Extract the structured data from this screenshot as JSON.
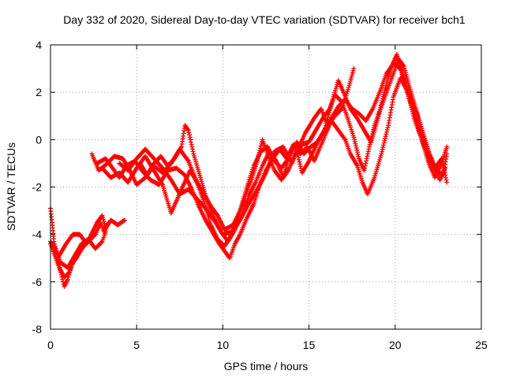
{
  "chart_data": {
    "type": "scatter",
    "title": "Day 332 of 2020, Sidereal Day-to-day VTEC variation (SDTVAR) for receiver bch1",
    "xlabel": "GPS time / hours",
    "ylabel": "SDTVAR / TECUs",
    "xlim": [
      0,
      25
    ],
    "ylim": [
      -8,
      4
    ],
    "xticks": [
      0,
      5,
      10,
      15,
      20,
      25
    ],
    "yticks": [
      -8,
      -6,
      -4,
      -2,
      0,
      2,
      4
    ],
    "grid": true,
    "marker": "+",
    "color": "#ff0000",
    "series": [
      {
        "name": "track-1",
        "points": [
          [
            0.0,
            -2.9
          ],
          [
            0.1,
            -3.5
          ],
          [
            0.2,
            -4.3
          ],
          [
            0.4,
            -5.0
          ],
          [
            0.6,
            -5.6
          ],
          [
            0.8,
            -6.2
          ],
          [
            1.0,
            -5.9
          ],
          [
            1.2,
            -5.3
          ],
          [
            1.5,
            -5.0
          ],
          [
            1.9,
            -4.5
          ],
          [
            2.3,
            -4.1
          ],
          [
            2.7,
            -3.5
          ],
          [
            3.0,
            -3.2
          ],
          [
            3.2,
            -3.7
          ],
          [
            3.5,
            -3.4
          ],
          [
            3.9,
            -3.6
          ],
          [
            4.3,
            -3.4
          ]
        ]
      },
      {
        "name": "track-2",
        "points": [
          [
            0.0,
            -4.4
          ],
          [
            0.2,
            -4.8
          ],
          [
            0.5,
            -5.4
          ],
          [
            0.8,
            -5.8
          ],
          [
            1.1,
            -5.6
          ],
          [
            1.4,
            -5.0
          ],
          [
            1.8,
            -4.6
          ],
          [
            2.2,
            -4.3
          ],
          [
            2.6,
            -4.0
          ],
          [
            2.9,
            -3.5
          ],
          [
            3.1,
            -3.9
          ],
          [
            3.4,
            -3.5
          ]
        ]
      },
      {
        "name": "track-3",
        "points": [
          [
            0.0,
            -4.3
          ],
          [
            0.3,
            -4.6
          ],
          [
            0.6,
            -5.2
          ],
          [
            1.0,
            -5.4
          ],
          [
            1.4,
            -4.9
          ],
          [
            1.8,
            -4.4
          ],
          [
            2.2,
            -4.2
          ],
          [
            2.6,
            -4.6
          ],
          [
            3.0,
            -4.3
          ],
          [
            3.2,
            -3.9
          ]
        ]
      },
      {
        "name": "track-4",
        "points": [
          [
            0.5,
            -4.9
          ],
          [
            0.9,
            -4.4
          ],
          [
            1.3,
            -4.0
          ],
          [
            1.7,
            -4.0
          ],
          [
            2.0,
            -4.3
          ]
        ]
      },
      {
        "name": "track-5",
        "points": [
          [
            2.4,
            -0.6
          ],
          [
            2.8,
            -1.3
          ],
          [
            3.3,
            -1.0
          ],
          [
            3.7,
            -0.7
          ],
          [
            4.2,
            -0.8
          ],
          [
            4.6,
            -1.3
          ],
          [
            5.0,
            -1.9
          ],
          [
            5.5,
            -1.6
          ],
          [
            6.0,
            -1.1
          ],
          [
            6.5,
            -1.4
          ],
          [
            7.0,
            -1.0
          ],
          [
            7.5,
            -0.4
          ],
          [
            8.0,
            -0.9
          ],
          [
            8.5,
            -1.8
          ],
          [
            8.9,
            -2.6
          ],
          [
            9.3,
            -3.6
          ],
          [
            9.7,
            -4.2
          ],
          [
            10.1,
            -4.5
          ],
          [
            10.5,
            -4.0
          ],
          [
            10.9,
            -3.3
          ],
          [
            11.3,
            -2.4
          ],
          [
            11.7,
            -1.6
          ],
          [
            12.0,
            -0.9
          ],
          [
            12.3,
            0.0
          ],
          [
            12.6,
            -0.6
          ],
          [
            13.0,
            -1.3
          ],
          [
            13.4,
            -1.7
          ],
          [
            13.8,
            -1.3
          ],
          [
            14.2,
            -0.6
          ],
          [
            14.6,
            -0.2
          ],
          [
            15.0,
            -0.1
          ],
          [
            15.4,
            0.4
          ],
          [
            15.8,
            0.9
          ],
          [
            16.2,
            1.3
          ],
          [
            16.5,
            1.9
          ],
          [
            16.9,
            1.6
          ],
          [
            17.2,
            1.0
          ],
          [
            17.6,
            0.1
          ],
          [
            17.9,
            -0.8
          ],
          [
            18.2,
            -1.3
          ],
          [
            18.5,
            -0.3
          ],
          [
            18.8,
            0.6
          ],
          [
            19.1,
            1.2
          ],
          [
            19.5,
            2.0
          ],
          [
            19.9,
            2.8
          ],
          [
            20.2,
            3.4
          ],
          [
            20.5,
            3.1
          ],
          [
            20.8,
            2.3
          ],
          [
            21.2,
            1.3
          ],
          [
            21.6,
            0.3
          ],
          [
            22.0,
            -0.6
          ],
          [
            22.4,
            -1.3
          ],
          [
            22.8,
            -1.5
          ],
          [
            23.0,
            -0.6
          ]
        ]
      },
      {
        "name": "track-6",
        "points": [
          [
            2.7,
            -1.0
          ],
          [
            3.2,
            -0.8
          ],
          [
            3.6,
            -1.2
          ],
          [
            4.0,
            -1.6
          ],
          [
            4.4,
            -1.1
          ],
          [
            4.9,
            -0.9
          ],
          [
            5.3,
            -1.3
          ],
          [
            5.8,
            -1.7
          ],
          [
            6.3,
            -1.9
          ],
          [
            6.8,
            -1.3
          ],
          [
            7.3,
            -1.2
          ],
          [
            7.8,
            -1.5
          ],
          [
            8.2,
            -2.1
          ],
          [
            8.6,
            -2.8
          ],
          [
            9.0,
            -3.4
          ],
          [
            9.4,
            -3.9
          ],
          [
            9.8,
            -4.4
          ],
          [
            10.2,
            -4.8
          ],
          [
            10.4,
            -5.0
          ],
          [
            10.7,
            -4.4
          ],
          [
            11.0,
            -4.0
          ],
          [
            11.4,
            -3.3
          ],
          [
            11.8,
            -2.7
          ],
          [
            12.1,
            -2.0
          ],
          [
            12.5,
            -1.3
          ],
          [
            12.9,
            -0.8
          ],
          [
            13.3,
            -0.4
          ],
          [
            13.7,
            -0.8
          ],
          [
            14.1,
            -0.2
          ],
          [
            14.5,
            -0.6
          ],
          [
            14.9,
            -0.3
          ],
          [
            15.3,
            -0.9
          ],
          [
            15.6,
            -0.4
          ],
          [
            16.0,
            0.3
          ],
          [
            16.3,
            0.8
          ],
          [
            16.7,
            0.4
          ],
          [
            17.1,
            0.0
          ],
          [
            17.4,
            -0.6
          ],
          [
            17.8,
            -1.1
          ],
          [
            18.1,
            -1.8
          ],
          [
            18.4,
            -2.3
          ],
          [
            18.8,
            -1.6
          ],
          [
            19.2,
            -0.6
          ],
          [
            19.6,
            0.6
          ],
          [
            19.9,
            1.8
          ],
          [
            20.3,
            2.6
          ],
          [
            20.6,
            2.2
          ],
          [
            21.0,
            1.6
          ],
          [
            21.4,
            0.8
          ],
          [
            21.8,
            -0.2
          ],
          [
            22.2,
            -1.1
          ],
          [
            22.6,
            -1.7
          ],
          [
            22.9,
            -1.2
          ]
        ]
      },
      {
        "name": "track-7",
        "points": [
          [
            3.0,
            -1.2
          ],
          [
            3.5,
            -1.6
          ],
          [
            4.0,
            -1.4
          ],
          [
            4.5,
            -1.8
          ],
          [
            5.0,
            -1.2
          ],
          [
            5.5,
            -0.7
          ],
          [
            6.0,
            -1.3
          ],
          [
            6.5,
            -1.9
          ],
          [
            7.0,
            -3.1
          ],
          [
            7.6,
            -2.1
          ],
          [
            8.1,
            -1.3
          ],
          [
            8.5,
            -1.8
          ],
          [
            8.9,
            -2.3
          ],
          [
            9.3,
            -2.8
          ],
          [
            9.7,
            -3.2
          ],
          [
            10.1,
            -3.8
          ],
          [
            10.6,
            -3.6
          ],
          [
            11.0,
            -3.0
          ],
          [
            11.4,
            -2.0
          ],
          [
            11.8,
            -1.1
          ],
          [
            12.2,
            -0.5
          ],
          [
            12.6,
            -0.3
          ],
          [
            13.0,
            -0.9
          ],
          [
            13.4,
            -1.2
          ],
          [
            13.8,
            -0.8
          ],
          [
            14.2,
            -0.2
          ],
          [
            14.6,
            -1.4
          ],
          [
            15.0,
            -0.9
          ],
          [
            15.5,
            -0.1
          ],
          [
            15.9,
            0.4
          ],
          [
            16.3,
            1.5
          ],
          [
            16.7,
            2.5
          ],
          [
            17.0,
            2.0
          ],
          [
            17.4,
            1.3
          ],
          [
            17.8,
            0.9
          ],
          [
            18.2,
            0.4
          ],
          [
            18.6,
            -0.1
          ],
          [
            19.0,
            0.9
          ],
          [
            19.4,
            2.1
          ],
          [
            19.8,
            3.1
          ],
          [
            20.1,
            3.6
          ],
          [
            20.4,
            2.9
          ],
          [
            20.7,
            2.0
          ],
          [
            21.1,
            1.1
          ],
          [
            21.5,
            0.1
          ],
          [
            21.9,
            -0.9
          ],
          [
            22.3,
            -1.6
          ],
          [
            22.7,
            -1.0
          ],
          [
            23.0,
            -0.3
          ]
        ]
      },
      {
        "name": "track-8",
        "points": [
          [
            4.0,
            -1.0
          ],
          [
            4.5,
            -1.3
          ],
          [
            5.0,
            -0.8
          ],
          [
            5.5,
            -0.4
          ],
          [
            6.0,
            -0.8
          ],
          [
            6.5,
            -1.2
          ],
          [
            7.0,
            -1.7
          ],
          [
            7.5,
            -2.3
          ],
          [
            8.0,
            -2.1
          ],
          [
            8.5,
            -2.5
          ],
          [
            9.0,
            -2.9
          ],
          [
            9.5,
            -3.4
          ],
          [
            10.0,
            -4.0
          ],
          [
            10.5,
            -3.9
          ],
          [
            11.0,
            -3.4
          ],
          [
            11.5,
            -2.7
          ],
          [
            12.0,
            -2.1
          ],
          [
            12.5,
            -1.4
          ],
          [
            13.0,
            -0.5
          ],
          [
            13.5,
            -0.3
          ],
          [
            14.0,
            -1.0
          ],
          [
            14.3,
            -0.5
          ],
          [
            14.8,
            0.3
          ],
          [
            15.3,
            0.9
          ],
          [
            15.7,
            1.3
          ],
          [
            16.1,
            0.6
          ],
          [
            16.5,
            1.0
          ],
          [
            16.9,
            1.3
          ],
          [
            17.3,
            2.2
          ],
          [
            17.6,
            3.0
          ]
        ]
      },
      {
        "name": "track-9",
        "points": [
          [
            5.2,
            -1.0
          ],
          [
            5.6,
            -1.5
          ],
          [
            6.0,
            -1.0
          ],
          [
            6.4,
            -0.7
          ],
          [
            6.8,
            -1.1
          ],
          [
            7.2,
            -0.8
          ],
          [
            7.6,
            -0.3
          ],
          [
            7.8,
            0.6
          ],
          [
            8.0,
            0.4
          ],
          [
            8.3,
            -0.6
          ],
          [
            8.7,
            -1.6
          ],
          [
            9.1,
            -2.6
          ],
          [
            9.5,
            -3.3
          ],
          [
            9.9,
            -3.9
          ],
          [
            10.3,
            -4.3
          ],
          [
            10.7,
            -3.8
          ],
          [
            11.1,
            -3.2
          ],
          [
            11.5,
            -2.4
          ],
          [
            11.9,
            -1.8
          ],
          [
            12.3,
            -1.1
          ],
          [
            12.7,
            -0.5
          ],
          [
            13.1,
            -0.9
          ],
          [
            13.5,
            -1.6
          ],
          [
            13.9,
            -0.6
          ],
          [
            14.3,
            -0.1
          ],
          [
            14.7,
            -0.6
          ],
          [
            15.1,
            -0.3
          ],
          [
            15.5,
            -0.1
          ],
          [
            15.9,
            0.4
          ],
          [
            16.3,
            0.9
          ],
          [
            16.7,
            1.4
          ],
          [
            17.1,
            1.7
          ],
          [
            17.5,
            1.3
          ],
          [
            17.9,
            1.1
          ],
          [
            18.3,
            0.8
          ],
          [
            18.7,
            1.3
          ],
          [
            19.1,
            2.0
          ],
          [
            19.5,
            2.8
          ],
          [
            19.9,
            3.2
          ],
          [
            20.3,
            3.0
          ],
          [
            20.7,
            2.1
          ],
          [
            21.1,
            0.9
          ],
          [
            21.5,
            0.1
          ],
          [
            21.9,
            -0.7
          ],
          [
            22.3,
            -1.2
          ],
          [
            22.7,
            -0.8
          ],
          [
            23.0,
            -1.8
          ]
        ]
      }
    ]
  }
}
